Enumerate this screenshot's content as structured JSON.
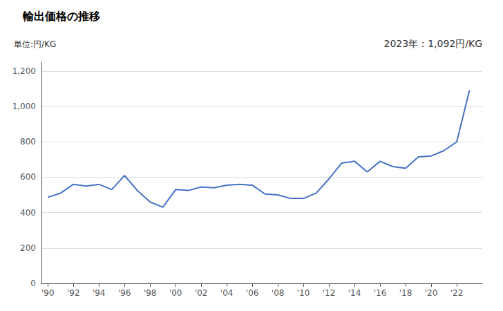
{
  "chart_data": {
    "type": "line",
    "title": "輸出価格の推移",
    "ylabel": "単位:円/KG",
    "annotation": "2023年：1,092円/KG",
    "x": [
      1990,
      1991,
      1992,
      1993,
      1994,
      1995,
      1996,
      1997,
      1998,
      1999,
      2000,
      2001,
      2002,
      2003,
      2004,
      2005,
      2006,
      2007,
      2008,
      2009,
      2010,
      2011,
      2012,
      2013,
      2014,
      2015,
      2016,
      2017,
      2018,
      2019,
      2020,
      2021,
      2022,
      2023
    ],
    "values": [
      487,
      510,
      560,
      550,
      560,
      530,
      610,
      525,
      460,
      430,
      530,
      525,
      545,
      540,
      555,
      560,
      555,
      505,
      500,
      480,
      480,
      510,
      590,
      680,
      690,
      630,
      690,
      660,
      650,
      715,
      720,
      750,
      800,
      1092
    ],
    "color": "#4472C4",
    "xlim": [
      1989.5,
      2024.0
    ],
    "xticks": [
      {
        "value": 1990,
        "label": "'90"
      },
      {
        "value": 1992,
        "label": "'92"
      },
      {
        "value": 1994,
        "label": "'94"
      },
      {
        "value": 1996,
        "label": "'96"
      },
      {
        "value": 1998,
        "label": "'98"
      },
      {
        "value": 2000,
        "label": "'00"
      },
      {
        "value": 2002,
        "label": "'02"
      },
      {
        "value": 2004,
        "label": "'04"
      },
      {
        "value": 2006,
        "label": "'06"
      },
      {
        "value": 2008,
        "label": "'08"
      },
      {
        "value": 2010,
        "label": "'10"
      },
      {
        "value": 2012,
        "label": "'12"
      },
      {
        "value": 2014,
        "label": "'14"
      },
      {
        "value": 2016,
        "label": "'16"
      },
      {
        "value": 2018,
        "label": "'18"
      },
      {
        "value": 2020,
        "label": "'20"
      },
      {
        "value": 2022,
        "label": "'22"
      }
    ],
    "ylim": [
      0,
      1250
    ],
    "yticks": [
      0,
      200,
      400,
      600,
      800,
      {
        "value": 1000,
        "label": "1,000"
      },
      {
        "value": 1200,
        "label": "1,200"
      }
    ],
    "grid": true
  }
}
